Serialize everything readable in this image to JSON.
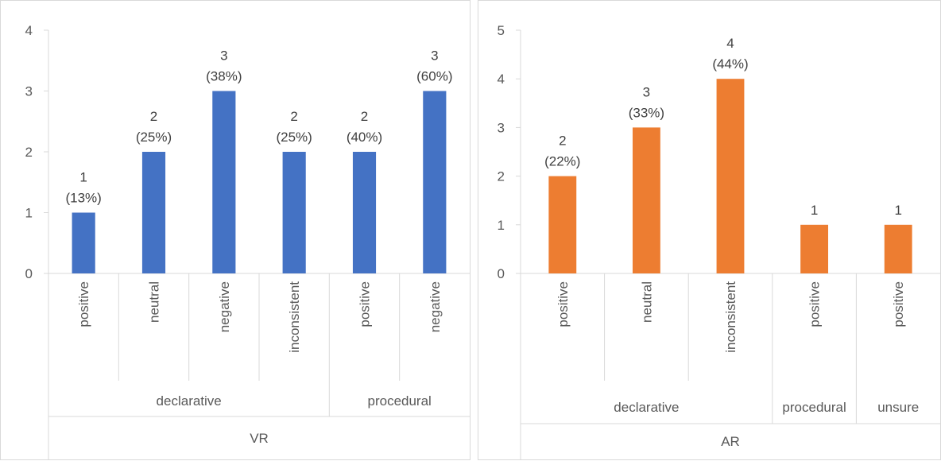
{
  "chart_data": [
    {
      "type": "bar",
      "group": "VR",
      "color": "#4472c4",
      "ylim": [
        0,
        4
      ],
      "yticks": [
        0,
        1,
        2,
        3,
        4
      ],
      "subgroups": [
        {
          "label": "declarative",
          "categories": [
            "positive",
            "neutral",
            "negative",
            "inconsistent"
          ]
        },
        {
          "label": "procedural",
          "categories": [
            "positive",
            "negative"
          ]
        }
      ],
      "values": [
        1,
        2,
        3,
        2,
        2,
        3
      ],
      "value_labels": [
        "1",
        "2",
        "3",
        "2",
        "2",
        "3"
      ],
      "percent_labels": [
        "(13%)",
        "(25%)",
        "(38%)",
        "(25%)",
        "(40%)",
        "(60%)"
      ]
    },
    {
      "type": "bar",
      "group": "AR",
      "color": "#ed7d31",
      "ylim": [
        0,
        5
      ],
      "yticks": [
        0,
        1,
        2,
        3,
        4,
        5
      ],
      "subgroups": [
        {
          "label": "declarative",
          "categories": [
            "positive",
            "neutral",
            "inconsistent"
          ]
        },
        {
          "label": "procedural",
          "categories": [
            "positive"
          ]
        },
        {
          "label": "unsure",
          "categories": [
            "positive"
          ]
        }
      ],
      "values": [
        2,
        3,
        4,
        1,
        1
      ],
      "value_labels": [
        "2",
        "3",
        "4",
        "1",
        "1"
      ],
      "percent_labels": [
        "(22%)",
        "(33%)",
        "(44%)",
        "",
        ""
      ]
    }
  ]
}
